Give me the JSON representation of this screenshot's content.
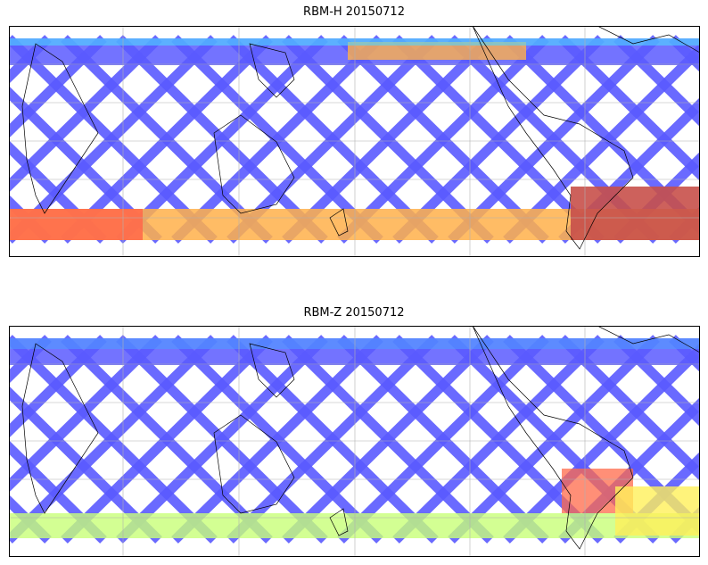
{
  "panels": [
    {
      "title": "RBM-H 20150712",
      "variable": "RBM-H",
      "date": "20150712"
    },
    {
      "title": "RBM-Z 20150712",
      "variable": "RBM-Z",
      "date": "20150712"
    }
  ],
  "colormap": {
    "name": "jet",
    "stops": [
      "#5a5aff",
      "#4f9bff",
      "#4cd8ff",
      "#6bffd8",
      "#c8ff78",
      "#fff05a",
      "#ffb04a",
      "#ff6a4a",
      "#c8504a"
    ]
  },
  "map": {
    "projection": "plate-carree",
    "central_longitude": 160,
    "lat_range": [
      -60,
      60
    ],
    "gridlines": true,
    "coastlines": true
  }
}
